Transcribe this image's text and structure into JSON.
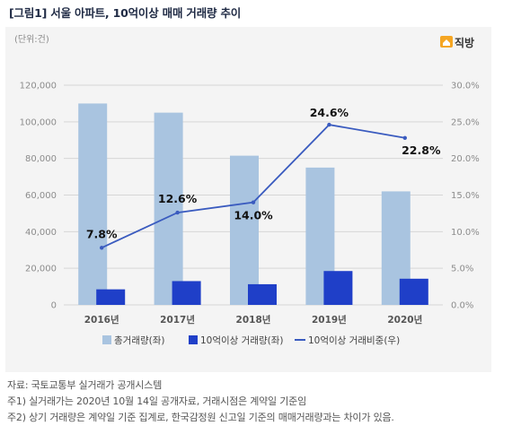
{
  "figure_title": "[그림1] 서울 아파트, 10억이상 매매 거래량 추이",
  "unit_label": "(단위:건)",
  "brand": {
    "name": "직방",
    "color": "#f5a623"
  },
  "notes": [
    "자료: 국토교통부 실거래가 공개시스템",
    "주1) 실거래가는 2020년 10월 14일 공개자료, 거래시점은 계약일 기준임",
    "주2) 상기 거래량은 계약일 기준 집계로, 한국감정원 신고일 기준의 매매거래량과는 차이가 있음."
  ],
  "chart_data": {
    "type": "bar+line",
    "categories": [
      "2016년",
      "2017년",
      "2018년",
      "2019년",
      "2020년"
    ],
    "series": [
      {
        "name": "총거래량(좌)",
        "type": "bar",
        "axis": "left",
        "color": "#a9c4e0",
        "values": [
          110000,
          105000,
          81500,
          75000,
          62000
        ]
      },
      {
        "name": "10억이상 거래량(좌)",
        "type": "bar",
        "axis": "left",
        "color": "#1f3fc8",
        "values": [
          8500,
          13000,
          11300,
          18500,
          14300
        ]
      },
      {
        "name": "10억이상 거래비중(우)",
        "type": "line",
        "axis": "right",
        "color": "#3a5bbf",
        "values": [
          7.8,
          12.6,
          14.0,
          24.6,
          22.8
        ],
        "labels": [
          "7.8%",
          "12.6%",
          "14.0%",
          "24.6%",
          "22.8%"
        ]
      }
    ],
    "left_axis": {
      "ylim": [
        0,
        120000
      ],
      "ticks": [
        "0",
        "20,000",
        "40,000",
        "60,000",
        "80,000",
        "100,000",
        "120,000"
      ]
    },
    "right_axis": {
      "ylim": [
        0,
        30
      ],
      "ticks": [
        "0.0%",
        "5.0%",
        "10.0%",
        "15.0%",
        "20.0%",
        "25.0%",
        "30.0%"
      ]
    },
    "grid": true,
    "legend": "bottom"
  }
}
